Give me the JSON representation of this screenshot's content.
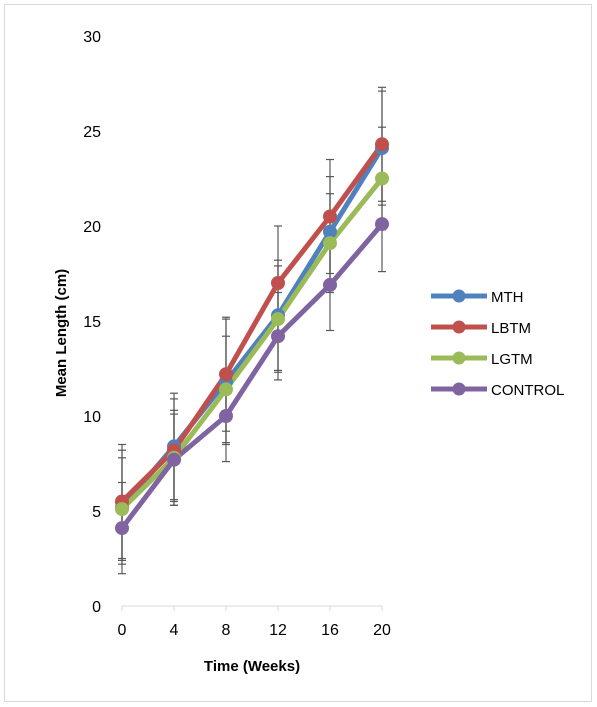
{
  "chart_data": {
    "type": "line",
    "title": "",
    "xlabel": "Time (Weeks)",
    "ylabel": "Mean Length (cm)",
    "x": [
      0,
      4,
      8,
      12,
      16,
      20
    ],
    "x_ticks": [
      "0",
      "4",
      "8",
      "12",
      "16",
      "20"
    ],
    "y_ticks": [
      "0",
      "5",
      "10",
      "15",
      "20",
      "25",
      "30"
    ],
    "ylim": [
      0,
      30
    ],
    "grid": false,
    "legend_position": "right",
    "error_bars": true,
    "series": [
      {
        "name": "MTH",
        "color": "#4F81BD",
        "values": [
          5.2,
          8.4,
          11.8,
          15.3,
          19.7,
          24.1
        ],
        "errors": [
          3.0,
          2.8,
          3.3,
          2.9,
          2.9,
          3.0
        ]
      },
      {
        "name": "LBTM",
        "color": "#C0504D",
        "values": [
          5.5,
          8.2,
          12.2,
          17.0,
          20.5,
          24.3
        ],
        "errors": [
          3.0,
          2.7,
          3.0,
          3.0,
          3.0,
          3.0
        ]
      },
      {
        "name": "LGTM",
        "color": "#9BBB59",
        "values": [
          5.1,
          7.8,
          11.4,
          15.1,
          19.1,
          22.5
        ],
        "errors": [
          2.7,
          2.5,
          2.8,
          2.8,
          2.6,
          2.7
        ]
      },
      {
        "name": "CONTROL",
        "color": "#8064A2",
        "values": [
          4.1,
          7.7,
          10.0,
          14.2,
          16.9,
          20.1
        ],
        "errors": [
          2.4,
          2.4,
          2.4,
          2.3,
          2.4,
          2.5
        ]
      }
    ]
  }
}
